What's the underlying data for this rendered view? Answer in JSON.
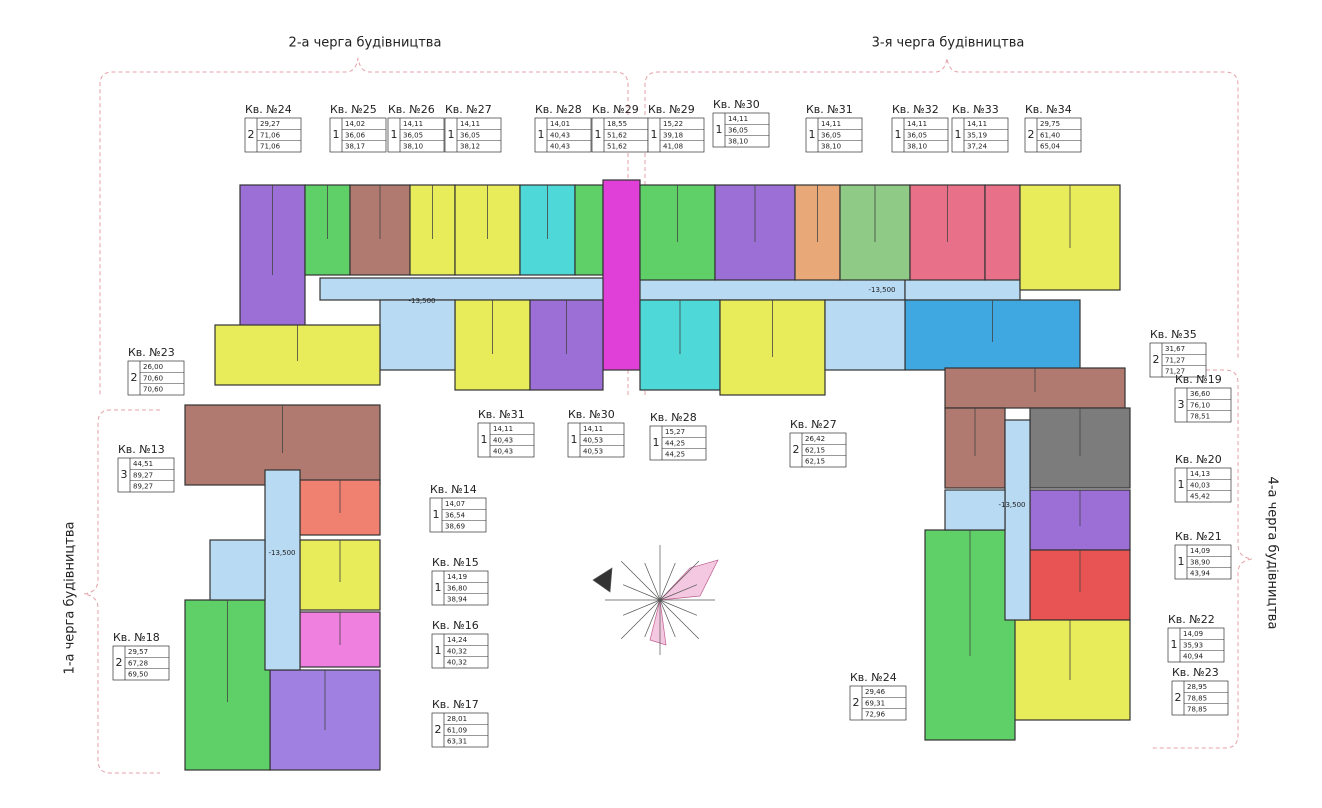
{
  "phases": [
    "2-а черга будівництва",
    "3-я черга будівництва",
    "1-а черга будівництва",
    "4-а черга будівництва"
  ],
  "levels": [
    "-13,500",
    "-13,500",
    "-13,500",
    "-13,500"
  ],
  "apartments": [
    {
      "label": "Кв. №24",
      "rooms": "2",
      "areas": [
        "29,27",
        "71,06",
        "71,06"
      ]
    },
    {
      "label": "Кв. №25",
      "rooms": "1",
      "areas": [
        "14,02",
        "36,06",
        "38,17"
      ]
    },
    {
      "label": "Кв. №26",
      "rooms": "1",
      "areas": [
        "14,11",
        "36,05",
        "38,10"
      ]
    },
    {
      "label": "Кв. №27",
      "rooms": "1",
      "areas": [
        "14,11",
        "36,05",
        "38,12"
      ]
    },
    {
      "label": "Кв. №28",
      "rooms": "1",
      "areas": [
        "14,01",
        "40,43",
        "40,43"
      ]
    },
    {
      "label": "Кв. №29",
      "rooms": "1",
      "areas": [
        "18,55",
        "51,62",
        "51,62"
      ]
    },
    {
      "label": "Кв. №29",
      "rooms": "1",
      "areas": [
        "15,22",
        "39,18",
        "41,08"
      ]
    },
    {
      "label": "Кв. №30",
      "rooms": "1",
      "areas": [
        "14,11",
        "36,05",
        "38,10"
      ]
    },
    {
      "label": "Кв. №31",
      "rooms": "1",
      "areas": [
        "14,11",
        "36,05",
        "38,10"
      ]
    },
    {
      "label": "Кв. №32",
      "rooms": "1",
      "areas": [
        "14,11",
        "36,05",
        "38,10"
      ]
    },
    {
      "label": "Кв. №33",
      "rooms": "1",
      "areas": [
        "14,11",
        "35,19",
        "37,24"
      ]
    },
    {
      "label": "Кв. №34",
      "rooms": "2",
      "areas": [
        "29,75",
        "61,40",
        "65,04"
      ]
    },
    {
      "label": "Кв. №35",
      "rooms": "2",
      "areas": [
        "31,67",
        "71,27",
        "71,27"
      ]
    },
    {
      "label": "Кв. №31",
      "rooms": "1",
      "areas": [
        "14,11",
        "40,43",
        "40,43"
      ]
    },
    {
      "label": "Кв. №30",
      "rooms": "1",
      "areas": [
        "14,11",
        "40,53",
        "40,53"
      ]
    },
    {
      "label": "Кв. №28",
      "rooms": "1",
      "areas": [
        "15,27",
        "44,25",
        "44,25"
      ]
    },
    {
      "label": "Кв. №27",
      "rooms": "2",
      "areas": [
        "26,42",
        "62,15",
        "62,15"
      ]
    },
    {
      "label": "Кв. №23",
      "rooms": "2",
      "areas": [
        "26,00",
        "70,60",
        "70,60"
      ]
    },
    {
      "label": "Кв. №13",
      "rooms": "3",
      "areas": [
        "44,51",
        "89,27",
        "89,27"
      ]
    },
    {
      "label": "Кв. №14",
      "rooms": "1",
      "areas": [
        "14,07",
        "36,54",
        "38,69"
      ]
    },
    {
      "label": "Кв. №15",
      "rooms": "1",
      "areas": [
        "14,19",
        "36,80",
        "38,94"
      ]
    },
    {
      "label": "Кв. №16",
      "rooms": "1",
      "areas": [
        "14,24",
        "40,32",
        "40,32"
      ]
    },
    {
      "label": "Кв. №17",
      "rooms": "2",
      "areas": [
        "28,01",
        "61,09",
        "63,31"
      ]
    },
    {
      "label": "Кв. №18",
      "rooms": "2",
      "areas": [
        "29,57",
        "67,28",
        "69,50"
      ]
    },
    {
      "label": "Кв. №19",
      "rooms": "3",
      "areas": [
        "36,60",
        "76,10",
        "78,51"
      ]
    },
    {
      "label": "Кв. №20",
      "rooms": "1",
      "areas": [
        "14,13",
        "40,03",
        "45,42"
      ]
    },
    {
      "label": "Кв. №21",
      "rooms": "1",
      "areas": [
        "14,09",
        "38,90",
        "43,94"
      ]
    },
    {
      "label": "Кв. №22",
      "rooms": "1",
      "areas": [
        "14,09",
        "35,93",
        "40,94"
      ]
    },
    {
      "label": "Кв. №23",
      "rooms": "2",
      "areas": [
        "28,95",
        "78,85",
        "78,85"
      ]
    },
    {
      "label": "Кв. №24",
      "rooms": "2",
      "areas": [
        "29,46",
        "69,31",
        "72,96"
      ]
    }
  ]
}
